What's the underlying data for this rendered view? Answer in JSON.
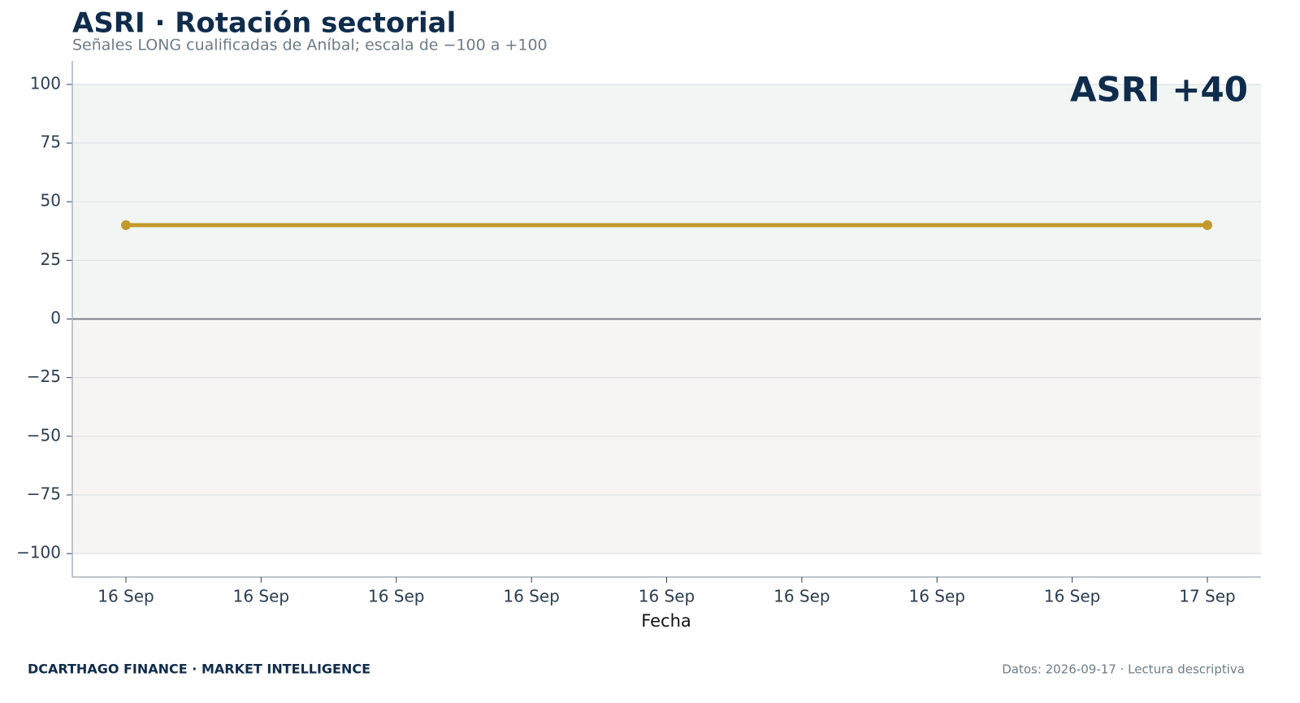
{
  "chart_data": {
    "type": "line",
    "title": "ASRI · Rotación sectorial",
    "subtitle": "Señales LONG cualificadas de Aníbal; escala de −100 a +100",
    "annotation": "ASRI +40",
    "xlabel": "Fecha",
    "x": [
      "16 Sep",
      "17 Sep"
    ],
    "xticks": [
      "16 Sep",
      "16 Sep",
      "16 Sep",
      "16 Sep",
      "16 Sep",
      "16 Sep",
      "16 Sep",
      "16 Sep",
      "17 Sep"
    ],
    "series": [
      {
        "name": "ASRI",
        "color": "#c29a2c",
        "values": [
          40,
          40
        ]
      }
    ],
    "ylim": [
      -110,
      110
    ],
    "yticks": [
      100,
      75,
      50,
      25,
      0,
      {
        "value": -25,
        "label": "−25"
      },
      {
        "value": -50,
        "label": "−50"
      },
      {
        "value": -75,
        "label": "−75"
      },
      {
        "value": -100,
        "label": "−100"
      }
    ],
    "grid": true
  },
  "footer": {
    "left": "DCARTHAGO FINANCE · MARKET INTELLIGENCE",
    "right": "Datos: 2026-09-17 · Lectura descriptiva"
  }
}
